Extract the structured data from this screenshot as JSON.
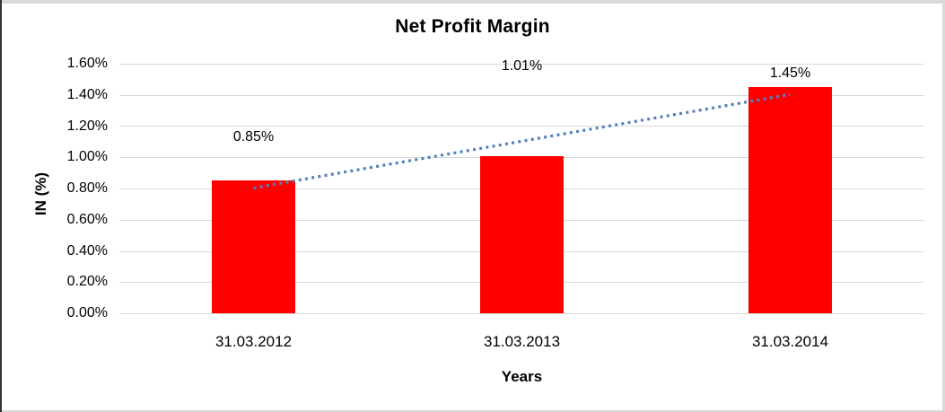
{
  "chart_data": {
    "type": "bar",
    "title": "Net Profit Margin",
    "xlabel": "Years",
    "ylabel": "IN (%)",
    "categories": [
      "31.03.2012",
      "31.03.2013",
      "31.03.2014"
    ],
    "values": [
      0.85,
      1.01,
      1.45
    ],
    "data_labels": [
      "0.85%",
      "1.01%",
      "1.45%"
    ],
    "ylim": [
      0,
      1.6
    ],
    "ytick_step": 0.2,
    "ytick_labels": [
      "0.00%",
      "0.20%",
      "0.40%",
      "0.60%",
      "0.80%",
      "1.00%",
      "1.20%",
      "1.40%",
      "1.60%"
    ],
    "grid": true,
    "legend": "none",
    "bar_color": "#ff0000",
    "gridline_color": "#d9d9d9",
    "trendline": {
      "type": "linear",
      "style": "dotted",
      "color": "#4f81bd"
    }
  }
}
